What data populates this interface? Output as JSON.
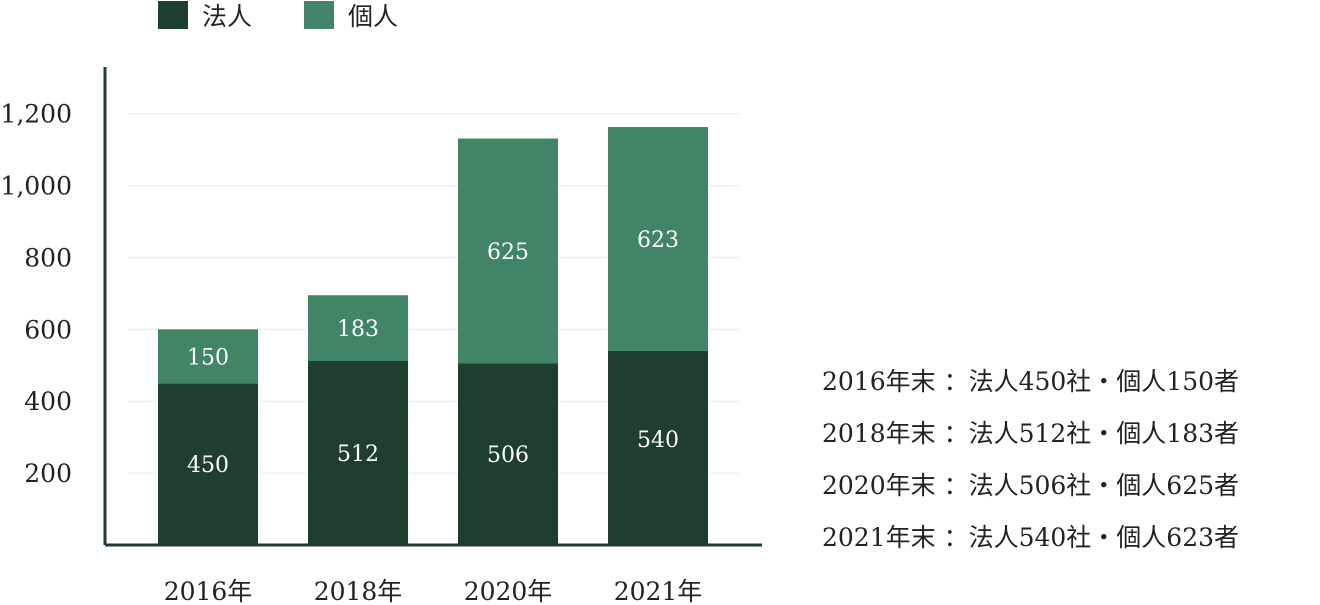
{
  "chart_data": {
    "type": "bar",
    "stacked": true,
    "categories": [
      "2016年",
      "2018年",
      "2020年",
      "2021年"
    ],
    "series": [
      {
        "name": "法人",
        "values": [
          450,
          512,
          506,
          540
        ],
        "color": "#1f3f2e"
      },
      {
        "name": "個人",
        "values": [
          150,
          183,
          625,
          623
        ],
        "color": "#418466"
      }
    ],
    "yticks": [
      "200",
      "400",
      "600",
      "800",
      "1,000",
      "1,200"
    ],
    "ylim": [
      0,
      1330
    ],
    "grid": true,
    "legend_position": "top-left"
  },
  "notes": [
    "2016年末 ：法人450社・個人150者",
    "2018年末 ：法人512社・個人183者",
    "2020年末 ：法人506社・個人625者",
    "2021年末 ：法人540社・個人623者"
  ]
}
